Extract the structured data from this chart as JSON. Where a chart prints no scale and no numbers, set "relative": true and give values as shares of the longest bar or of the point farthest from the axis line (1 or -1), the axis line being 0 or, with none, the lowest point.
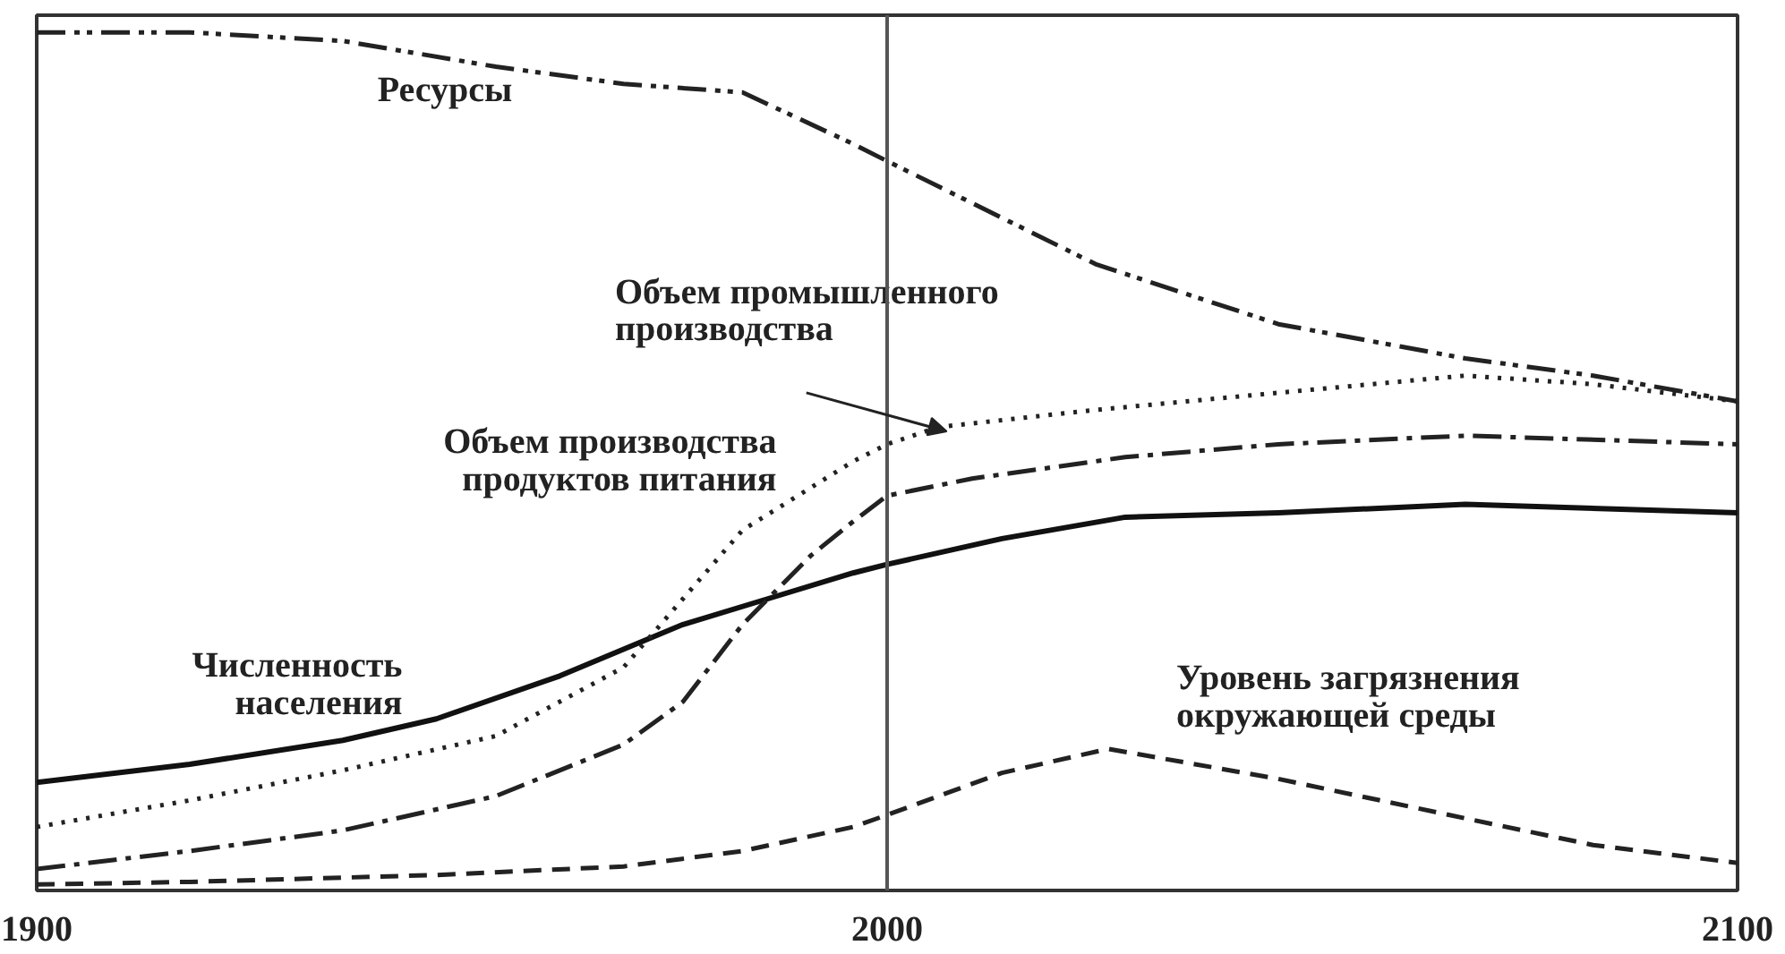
{
  "chart_data": {
    "type": "line",
    "relative": true,
    "xlim": [
      1900,
      2100
    ],
    "xticks": [
      1900,
      2000,
      2100
    ],
    "grid": false,
    "ref_lines": [
      {
        "axis": "x",
        "value": 2000,
        "color": "#555555"
      }
    ],
    "series": [
      {
        "name": "Ресурсы",
        "color": "#222222",
        "line_style": "dashdotdot",
        "x": [
          1900,
          1918,
          1936,
          1954,
          1969,
          1983,
          1996,
          2000,
          2024.5,
          2046,
          2068,
          2083,
          2100
        ],
        "values": [
          1.0,
          1.0,
          0.99,
          0.96,
          0.94,
          0.93,
          0.87,
          0.85,
          0.73,
          0.66,
          0.62,
          0.6,
          0.57
        ]
      },
      {
        "name": "Численность\nнаселения",
        "color": "#111111",
        "line_style": "solid",
        "x": [
          1900,
          1918,
          1936,
          1947,
          1961.5,
          1976,
          1986,
          1996,
          2000,
          2013.5,
          2028,
          2046,
          2068,
          2100
        ],
        "values": [
          0.126,
          0.147,
          0.175,
          0.2,
          0.25,
          0.31,
          0.34,
          0.37,
          0.38,
          0.41,
          0.435,
          0.44,
          0.45,
          0.44
        ]
      },
      {
        "name": "Объем промышленного\nпроизводства",
        "color": "#222222",
        "line_style": "dotted",
        "x": [
          1900,
          1918,
          1936,
          1954,
          1969,
          1976,
          1983,
          1996,
          2000,
          2006,
          2024.5,
          2046,
          2068,
          2083,
          2100
        ],
        "values": [
          0.074,
          0.105,
          0.14,
          0.18,
          0.26,
          0.34,
          0.42,
          0.5,
          0.52,
          0.54,
          0.56,
          0.58,
          0.6,
          0.59,
          0.57
        ]
      },
      {
        "name": "Объем производства\nпродуктов питания",
        "color": "#222222",
        "line_style": "dashdot",
        "x": [
          1900,
          1918,
          1936,
          1954,
          1969,
          1976,
          1983,
          1991,
          1996,
          2000,
          2010,
          2028,
          2046,
          2068,
          2100
        ],
        "values": [
          0.025,
          0.046,
          0.07,
          0.11,
          0.17,
          0.22,
          0.31,
          0.39,
          0.43,
          0.46,
          0.48,
          0.505,
          0.52,
          0.53,
          0.52
        ]
      },
      {
        "name": "Уровень загрязнения\nокружающей среды",
        "color": "#222222",
        "line_style": "dashed",
        "x": [
          1900,
          1918,
          1947,
          1969,
          1983,
          1996,
          2000,
          2013.5,
          2026,
          2046,
          2068,
          2083,
          2100
        ],
        "values": [
          0.007,
          0.01,
          0.018,
          0.028,
          0.046,
          0.074,
          0.088,
          0.137,
          0.165,
          0.13,
          0.084,
          0.053,
          0.032
        ]
      }
    ]
  }
}
